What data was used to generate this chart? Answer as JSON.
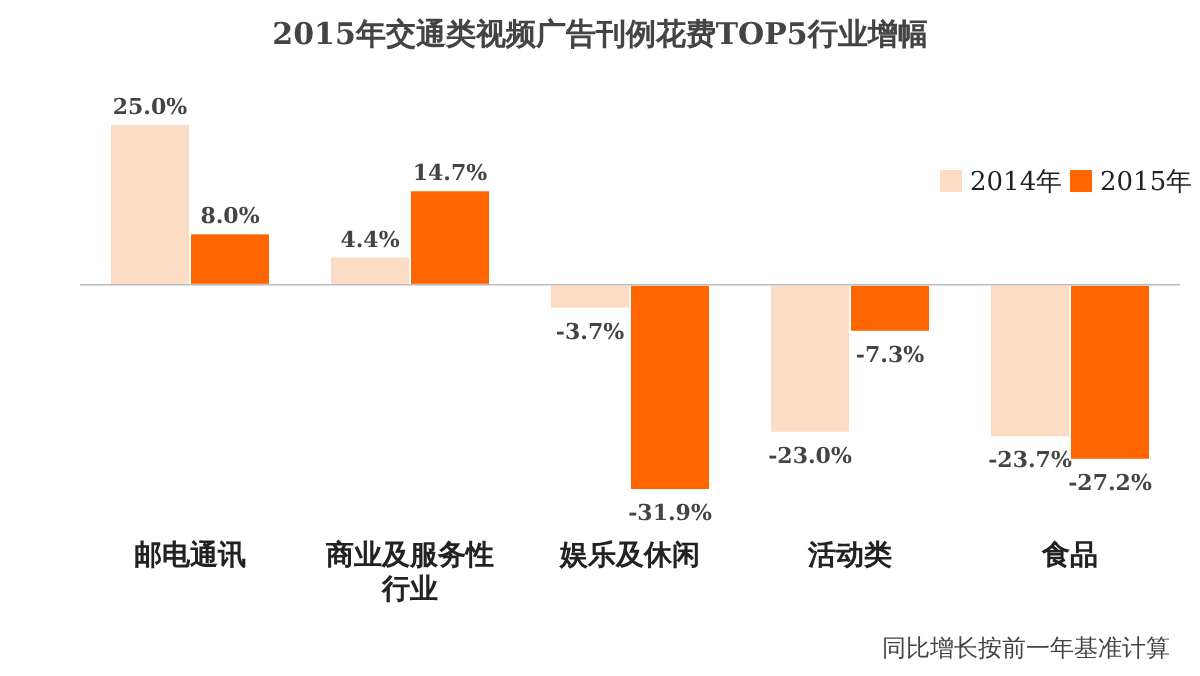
{
  "chart_data": {
    "type": "bar",
    "title": "2015年交通类视频广告刊例花费TOP5行业增幅",
    "categories": [
      "邮电通讯",
      "商业及服务性行业",
      "娱乐及休闲",
      "活动类",
      "食品"
    ],
    "series": [
      {
        "name": "2014年",
        "color": "#fcdcc4",
        "values": [
          25.0,
          4.4,
          -3.7,
          -23.0,
          -23.7
        ],
        "value_labels": [
          "25.0%",
          "4.4%",
          "-3.7%",
          "-23.0%",
          "-23.7%"
        ]
      },
      {
        "name": "2015年",
        "color": "#ff6600",
        "values": [
          8.0,
          14.7,
          -31.9,
          -7.3,
          -27.2
        ],
        "value_labels": [
          "8.0%",
          "14.7%",
          "-31.9%",
          "-7.3%",
          "-27.2%"
        ]
      }
    ],
    "legend": "top right",
    "annotations": [
      "同比增长按前一年基准计算"
    ]
  }
}
